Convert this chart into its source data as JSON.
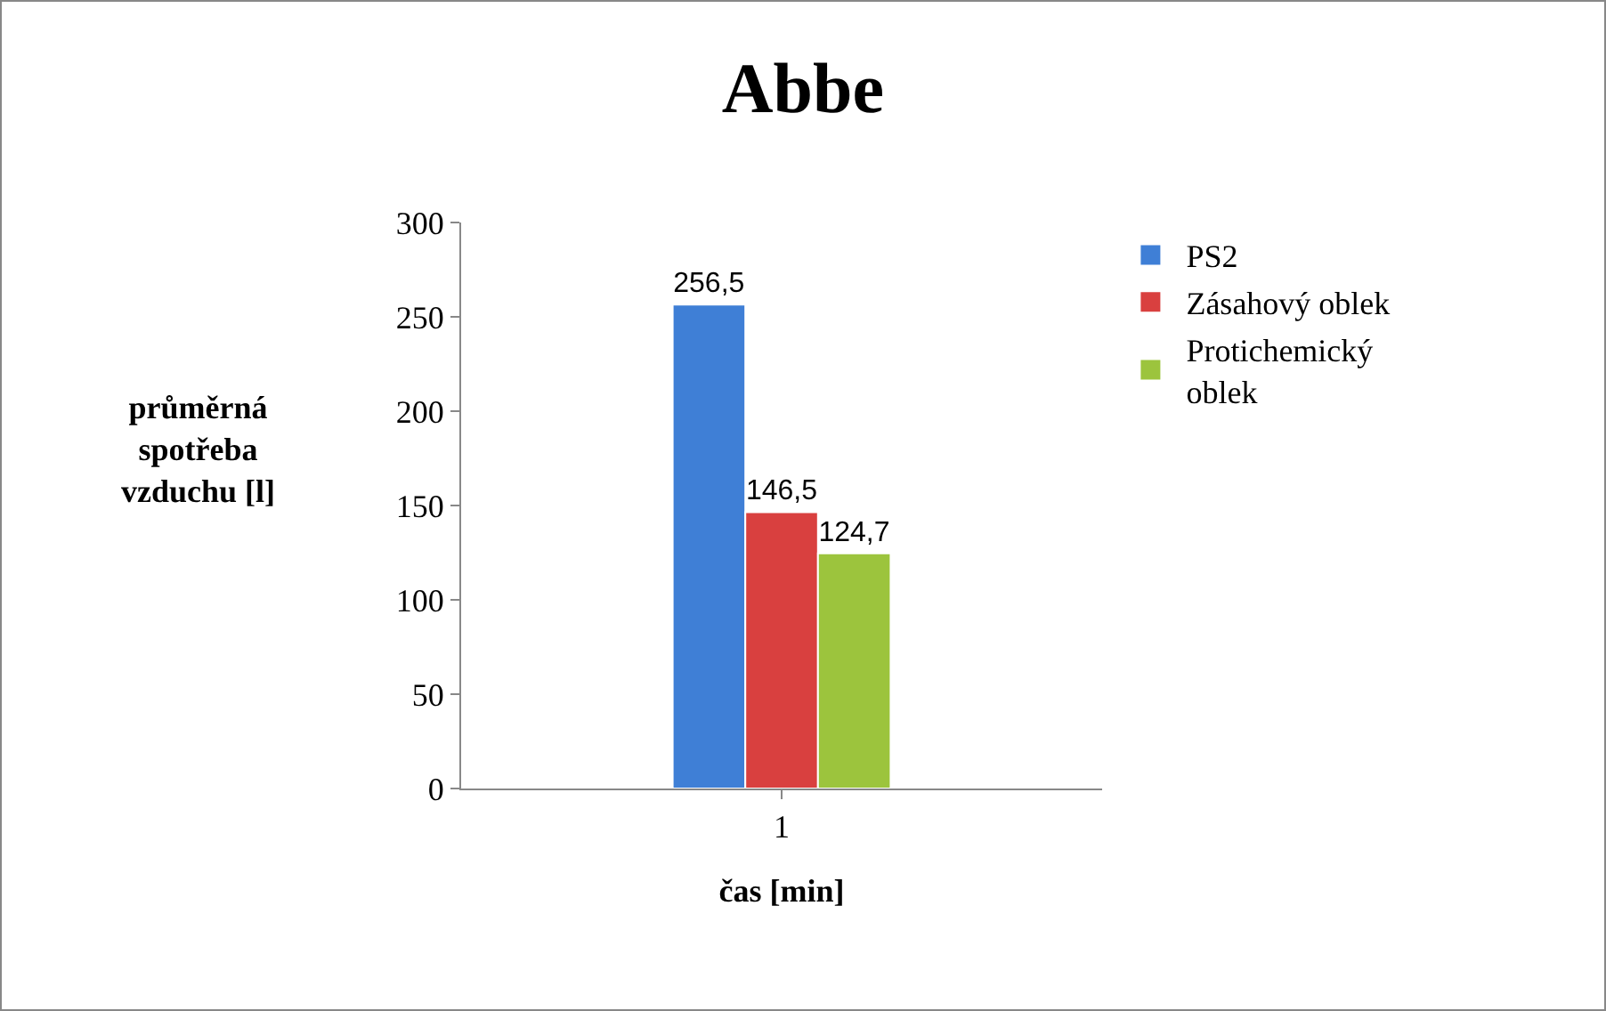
{
  "chart_data": {
    "type": "bar",
    "title": "Abbe",
    "xlabel": "čas [min]",
    "ylabel": "průměrná\nspotřeba\nvzduchu [l]",
    "categories": [
      "1"
    ],
    "series": [
      {
        "name": "PS2",
        "color": "#3f7fd6",
        "values": [
          256.5
        ],
        "value_labels": [
          "256,5"
        ]
      },
      {
        "name": "Zásahový oblek",
        "color": "#d9403f",
        "values": [
          146.5
        ],
        "value_labels": [
          "146,5"
        ]
      },
      {
        "name": "Protichemický\noblek",
        "color": "#9cc43d",
        "values": [
          124.7
        ],
        "value_labels": [
          "124,7"
        ]
      }
    ],
    "ylim": [
      0,
      300
    ],
    "yticks": [
      0,
      50,
      100,
      150,
      200,
      250,
      300
    ],
    "grid": false,
    "legend": "right"
  }
}
